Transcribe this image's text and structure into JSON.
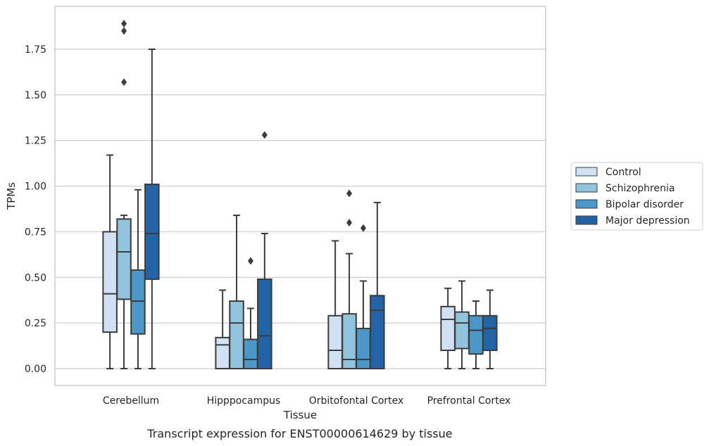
{
  "chart_data": {
    "type": "box",
    "title": "",
    "caption": "Transcript expression for ENST00000614629 by tissue",
    "xlabel": "Tissue",
    "ylabel": "TPMs",
    "ylim": [
      -0.09,
      1.98
    ],
    "yticks": [
      0.0,
      0.25,
      0.5,
      0.75,
      1.0,
      1.25,
      1.5,
      1.75
    ],
    "ytick_labels": [
      "0.00",
      "0.25",
      "0.50",
      "0.75",
      "1.00",
      "1.25",
      "1.50",
      "1.75"
    ],
    "grid": "horizontal",
    "legend_position": "right",
    "categories": [
      "Cerebellum",
      "Hipppocampus",
      "Orbitofontal Cortex",
      "Prefrontal Cortex"
    ],
    "series": [
      {
        "name": "Control",
        "color": "#cfe1f2",
        "boxes": [
          {
            "whislo": 0.0,
            "q1": 0.2,
            "med": 0.41,
            "q3": 0.75,
            "whishi": 1.17,
            "fliers": []
          },
          {
            "whislo": 0.0,
            "q1": 0.0,
            "med": 0.13,
            "q3": 0.17,
            "whishi": 0.43,
            "fliers": []
          },
          {
            "whislo": 0.0,
            "q1": 0.0,
            "med": 0.1,
            "q3": 0.29,
            "whishi": 0.7,
            "fliers": []
          },
          {
            "whislo": 0.0,
            "q1": 0.1,
            "med": 0.27,
            "q3": 0.34,
            "whishi": 0.44,
            "fliers": []
          }
        ]
      },
      {
        "name": "Schizophrenia",
        "color": "#93c4de",
        "boxes": [
          {
            "whislo": 0.0,
            "q1": 0.38,
            "med": 0.64,
            "q3": 0.82,
            "whishi": 0.84,
            "fliers": [
              1.57,
              1.85,
              1.89
            ]
          },
          {
            "whislo": 0.0,
            "q1": 0.0,
            "med": 0.25,
            "q3": 0.37,
            "whishi": 0.84,
            "fliers": []
          },
          {
            "whislo": 0.0,
            "q1": 0.0,
            "med": 0.05,
            "q3": 0.3,
            "whishi": 0.63,
            "fliers": [
              0.8,
              0.96
            ]
          },
          {
            "whislo": 0.0,
            "q1": 0.11,
            "med": 0.25,
            "q3": 0.31,
            "whishi": 0.48,
            "fliers": []
          }
        ]
      },
      {
        "name": "Bipolar disorder",
        "color": "#4a98c9",
        "boxes": [
          {
            "whislo": 0.0,
            "q1": 0.19,
            "med": 0.37,
            "q3": 0.54,
            "whishi": 0.98,
            "fliers": []
          },
          {
            "whislo": 0.0,
            "q1": 0.0,
            "med": 0.05,
            "q3": 0.16,
            "whishi": 0.33,
            "fliers": [
              0.59
            ]
          },
          {
            "whislo": 0.0,
            "q1": 0.0,
            "med": 0.05,
            "q3": 0.22,
            "whishi": 0.48,
            "fliers": [
              0.77
            ]
          },
          {
            "whislo": 0.0,
            "q1": 0.08,
            "med": 0.21,
            "q3": 0.29,
            "whishi": 0.37,
            "fliers": []
          }
        ]
      },
      {
        "name": "Major depression",
        "color": "#2262a6",
        "boxes": [
          {
            "whislo": 0.0,
            "q1": 0.49,
            "med": 0.74,
            "q3": 1.01,
            "whishi": 1.75,
            "fliers": []
          },
          {
            "whislo": 0.0,
            "q1": 0.0,
            "med": 0.18,
            "q3": 0.49,
            "whishi": 0.74,
            "fliers": [
              1.28
            ]
          },
          {
            "whislo": 0.0,
            "q1": 0.0,
            "med": 0.32,
            "q3": 0.4,
            "whishi": 0.91,
            "fliers": []
          },
          {
            "whislo": 0.0,
            "q1": 0.1,
            "med": 0.22,
            "q3": 0.29,
            "whishi": 0.43,
            "fliers": []
          }
        ]
      }
    ]
  }
}
